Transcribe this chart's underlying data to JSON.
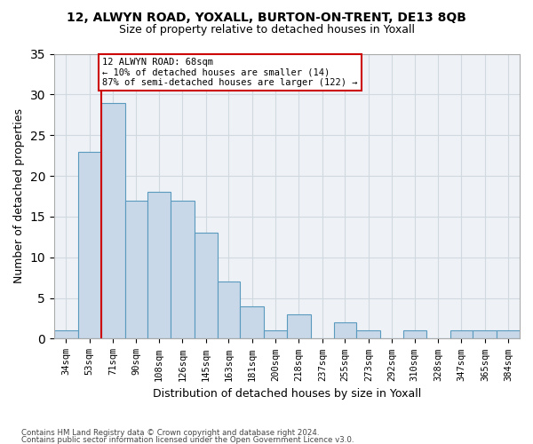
{
  "title_line1": "12, ALWYN ROAD, YOXALL, BURTON-ON-TRENT, DE13 8QB",
  "title_line2": "Size of property relative to detached houses in Yoxall",
  "xlabel": "Distribution of detached houses by size in Yoxall",
  "ylabel": "Number of detached properties",
  "bar_edges": [
    34,
    53,
    71,
    90,
    108,
    126,
    145,
    163,
    181,
    200,
    218,
    237,
    255,
    273,
    292,
    310,
    328,
    347,
    365,
    384,
    402
  ],
  "bar_heights": [
    1,
    23,
    29,
    17,
    18,
    17,
    13,
    7,
    4,
    1,
    3,
    0,
    2,
    1,
    0,
    1,
    0,
    1,
    1,
    1
  ],
  "bar_color": "#c8d8e8",
  "bar_edge_color": "#5a9abf",
  "grid_color": "#d0d8e0",
  "background_color": "#eef2f7",
  "annotation_box_color": "#ffffff",
  "annotation_border_color": "#cc0000",
  "red_line_x": 71,
  "annotation_text_line1": "12 ALWYN ROAD: 68sqm",
  "annotation_text_line2": "← 10% of detached houses are smaller (14)",
  "annotation_text_line3": "87% of semi-detached houses are larger (122) →",
  "ylim": [
    0,
    35
  ],
  "yticks": [
    0,
    5,
    10,
    15,
    20,
    25,
    30,
    35
  ],
  "footer_line1": "Contains HM Land Registry data © Crown copyright and database right 2024.",
  "footer_line2": "Contains public sector information licensed under the Open Government Licence v3.0."
}
